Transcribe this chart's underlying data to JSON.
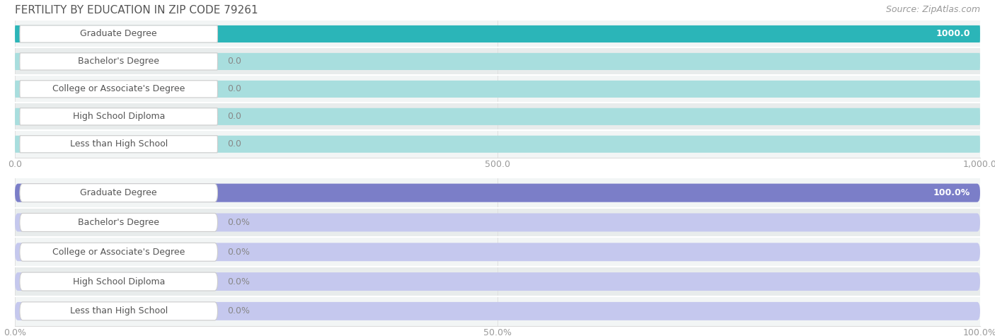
{
  "title": "FERTILITY BY EDUCATION IN ZIP CODE 79261",
  "source": "Source: ZipAtlas.com",
  "categories": [
    "Less than High School",
    "High School Diploma",
    "College or Associate's Degree",
    "Bachelor's Degree",
    "Graduate Degree"
  ],
  "values_count": [
    0.0,
    0.0,
    0.0,
    0.0,
    1000.0
  ],
  "values_pct": [
    0.0,
    0.0,
    0.0,
    0.0,
    100.0
  ],
  "count_max": 1000.0,
  "pct_max": 100.0,
  "count_ticks": [
    0.0,
    500.0,
    1000.0
  ],
  "pct_tick_vals": [
    0.0,
    50.0,
    100.0
  ],
  "pct_tick_labels": [
    "0.0%",
    "50.0%",
    "100.0%"
  ],
  "bar_color_top_bg": "#a8dede",
  "bar_color_top_fg": "#2bb5b8",
  "bar_color_bottom_bg": "#c5c8ee",
  "bar_color_bottom_fg": "#7b7ec8",
  "row_bg_light": "#f2f5f5",
  "row_bg_dark": "#e8ecec",
  "title_fontsize": 11,
  "label_fontsize": 9,
  "tick_fontsize": 9,
  "value_fontsize": 9,
  "source_fontsize": 9
}
